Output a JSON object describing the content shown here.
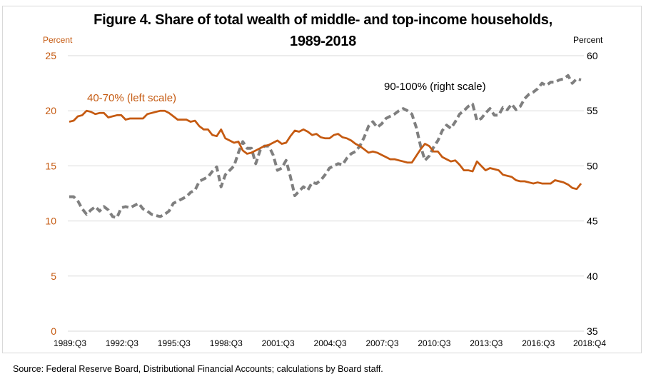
{
  "chart_data": {
    "type": "line",
    "title": "Figure 4.  Share of total wealth of middle- and top-income households,",
    "title_line2": "1989-2018",
    "ylabel_left": "Percent",
    "ylabel_right": "Percent",
    "xlabel": "",
    "ylim_left": [
      0,
      25
    ],
    "ylim_right": [
      35,
      60
    ],
    "yticks_left": [
      "0",
      "5",
      "10",
      "15",
      "20",
      "25"
    ],
    "yticks_right": [
      "35",
      "40",
      "45",
      "50",
      "55",
      "60"
    ],
    "grid": true,
    "x_range": [
      "1989:Q3",
      "2018:Q4"
    ],
    "x_tick_labels": [
      "1989:Q3",
      "1992:Q3",
      "1995:Q3",
      "1998:Q3",
      "2001:Q3",
      "2004:Q3",
      "2007:Q3",
      "2010:Q3",
      "2013:Q3",
      "2016:Q3",
      "2018:Q4"
    ],
    "series": [
      {
        "name": "40-70% (left scale)",
        "axis": "left",
        "color": "#c55a11",
        "style": "solid",
        "values": [
          19.0,
          19.1,
          19.5,
          19.6,
          20.0,
          19.9,
          19.7,
          19.8,
          19.8,
          19.4,
          19.5,
          19.6,
          19.6,
          19.2,
          19.3,
          19.3,
          19.3,
          19.3,
          19.7,
          19.8,
          19.9,
          20.0,
          20.0,
          19.8,
          19.5,
          19.2,
          19.2,
          19.2,
          19.0,
          19.1,
          18.6,
          18.3,
          18.3,
          17.8,
          17.7,
          18.3,
          17.5,
          17.3,
          17.1,
          17.2,
          16.4,
          16.1,
          16.2,
          16.4,
          16.6,
          16.8,
          16.9,
          17.1,
          17.3,
          17.0,
          17.1,
          17.7,
          18.2,
          18.1,
          18.3,
          18.1,
          17.8,
          17.9,
          17.6,
          17.5,
          17.5,
          17.8,
          17.9,
          17.6,
          17.5,
          17.3,
          17.0,
          16.8,
          16.5,
          16.2,
          16.3,
          16.2,
          16.0,
          15.8,
          15.6,
          15.6,
          15.5,
          15.4,
          15.3,
          15.3,
          15.9,
          16.5,
          17.0,
          16.8,
          16.3,
          16.3,
          15.8,
          15.6,
          15.4,
          15.5,
          15.1,
          14.6,
          14.6,
          14.5,
          15.4,
          15.0,
          14.6,
          14.8,
          14.7,
          14.6,
          14.2,
          14.1,
          14.0,
          13.7,
          13.6,
          13.6,
          13.5,
          13.4,
          13.5,
          13.4,
          13.4,
          13.4,
          13.7,
          13.6,
          13.5,
          13.3,
          13.0,
          12.9,
          13.4
        ]
      },
      {
        "name": "90-100% (right scale)",
        "axis": "right",
        "color": "#7f7f7f",
        "style": "dashed",
        "values": [
          47.2,
          47.2,
          46.8,
          46.1,
          45.6,
          46.0,
          46.3,
          45.9,
          46.3,
          46.0,
          45.4,
          45.3,
          46.2,
          46.3,
          46.2,
          46.4,
          46.6,
          46.1,
          45.9,
          45.6,
          45.5,
          45.4,
          45.6,
          45.9,
          46.6,
          46.8,
          47.0,
          47.2,
          47.6,
          47.8,
          48.6,
          48.8,
          49.0,
          49.5,
          49.9,
          48.1,
          49.2,
          49.6,
          50.0,
          51.2,
          52.2,
          51.6,
          51.6,
          50.2,
          51.4,
          51.8,
          51.8,
          51.0,
          49.6,
          49.8,
          50.5,
          49.0,
          47.3,
          47.7,
          48.1,
          47.8,
          48.5,
          48.4,
          48.7,
          49.2,
          49.8,
          50.0,
          50.2,
          50.1,
          50.7,
          51.1,
          51.3,
          51.8,
          52.6,
          53.6,
          54.0,
          53.5,
          53.8,
          54.3,
          54.5,
          54.7,
          55.0,
          55.2,
          55.0,
          54.7,
          53.5,
          51.8,
          50.5,
          50.9,
          51.7,
          52.3,
          53.2,
          53.7,
          53.4,
          54.0,
          54.7,
          55.0,
          55.4,
          55.6,
          54.1,
          54.3,
          54.8,
          55.2,
          54.6,
          54.6,
          55.3,
          55.1,
          55.6,
          55.1,
          55.4,
          56.1,
          56.5,
          56.7,
          57.0,
          57.5,
          57.3,
          57.6,
          57.6,
          57.8,
          57.9,
          58.2,
          57.5,
          57.9,
          57.8
        ]
      }
    ],
    "annotations": [
      {
        "text": "40-70% (left scale)",
        "series": "40-70% (left scale)"
      },
      {
        "text": "90-100% (right scale)",
        "series": "90-100% (right scale)"
      }
    ]
  },
  "source": "Source:  Federal Reserve Board, Distributional Financial Accounts; calculations by Board staff."
}
